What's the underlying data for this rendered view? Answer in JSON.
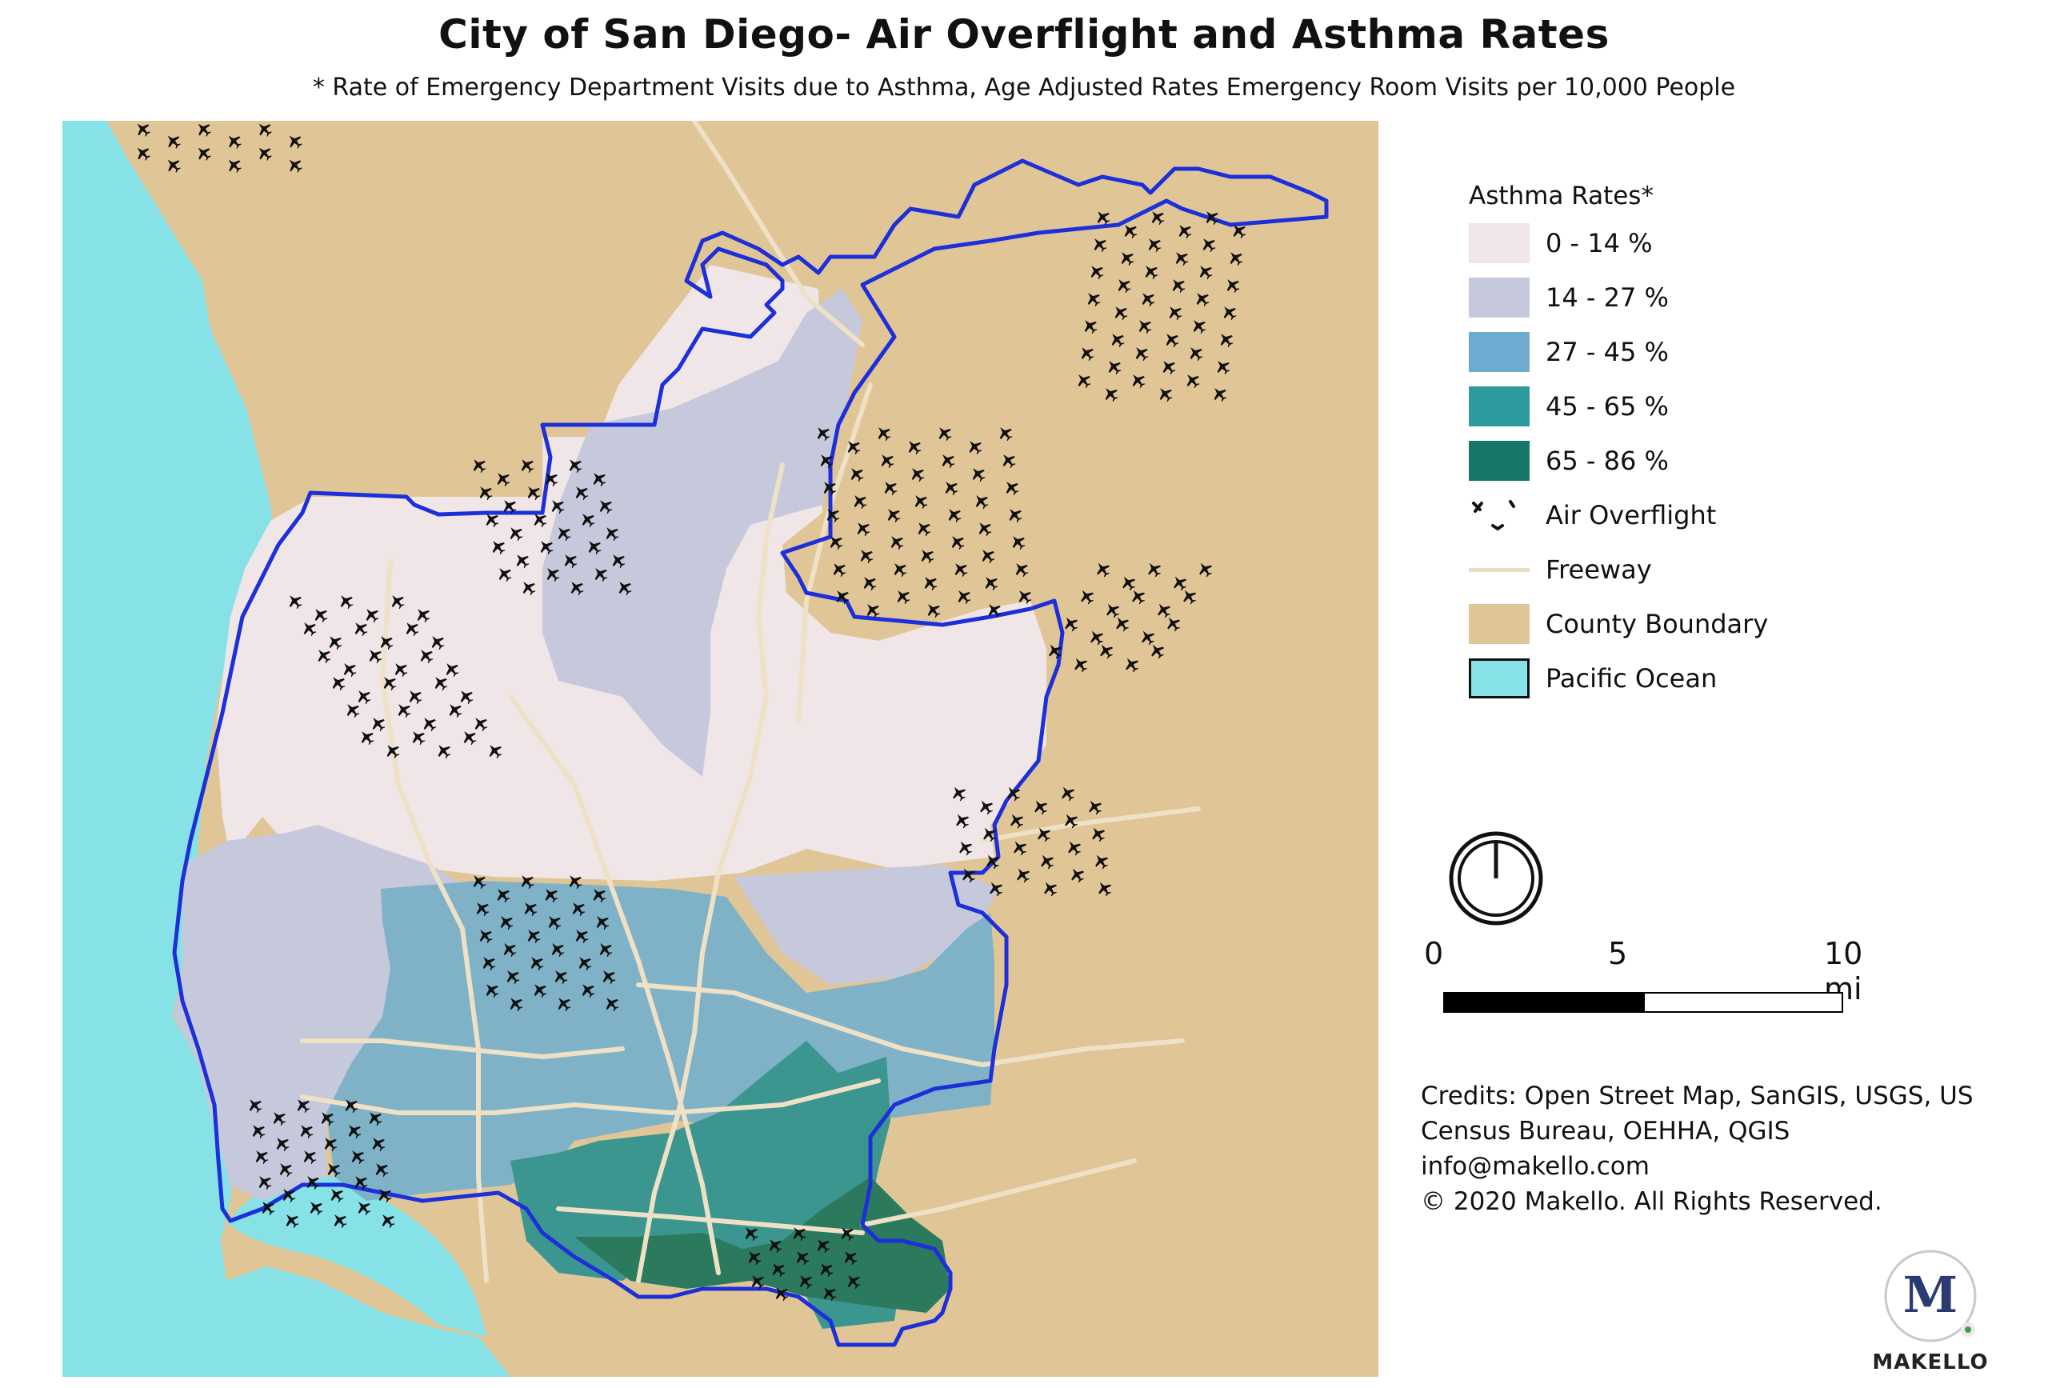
{
  "title": "City of San Diego- Air Overflight and Asthma Rates",
  "subtitle": "* Rate of Emergency Department Visits due to Asthma, Age Adjusted Rates Emergency Room Visits per 10,000 People",
  "colors": {
    "ocean": "#86e2e6",
    "county": "#e0c597",
    "freeway": "#efe1c6",
    "boundary": "#1c2fd9",
    "rate_0_14": "#f0e6e8",
    "rate_14_27": "#c6c8db",
    "rate_27_45": "#7fb2c6",
    "rate_45_65": "#3b968f",
    "rate_65_86": "#2c7a5e"
  },
  "legend": {
    "title": "Asthma Rates*",
    "items": [
      {
        "label": "0 - 14 %",
        "type": "fill",
        "color": "#f0e6e8",
        "name": "legend-item-0-14"
      },
      {
        "label": "14 - 27 %",
        "type": "fill",
        "color": "#c6c8db",
        "name": "legend-item-14-27"
      },
      {
        "label": "27 - 45 %",
        "type": "fill",
        "color": "#6fabd0",
        "name": "legend-item-27-45"
      },
      {
        "label": "45 - 65 %",
        "type": "fill",
        "color": "#2d9aa0",
        "name": "legend-item-45-65"
      },
      {
        "label": "65 - 86 %",
        "type": "fill",
        "color": "#177766",
        "name": "legend-item-65-86"
      },
      {
        "label": "Air Overflight",
        "type": "planes",
        "name": "legend-item-air-overflight"
      },
      {
        "label": "Freeway",
        "type": "line",
        "color": "#e8dcc4",
        "name": "legend-item-freeway"
      },
      {
        "label": "County Boundary",
        "type": "fill",
        "color": "#e0c597",
        "name": "legend-item-county-boundary"
      },
      {
        "label": "Pacific Ocean",
        "type": "fill-outline",
        "color": "#86e2e6",
        "name": "legend-item-pacific-ocean"
      }
    ]
  },
  "north_arrow": {
    "icon": "north-arrow-icon"
  },
  "scale_bar": {
    "labels": [
      "0",
      "5",
      "10 mi"
    ]
  },
  "credits": [
    "Credits: Open Street Map, SanGIS, USGS, US",
    "Census Bureau, OEHHA, QGIS",
    "info@makello.com",
    "© 2020 Makello. All Rights Reserved."
  ],
  "logo": {
    "mark": "M",
    "text": "MAKELLO",
    "icon": "makello-logo-icon"
  }
}
